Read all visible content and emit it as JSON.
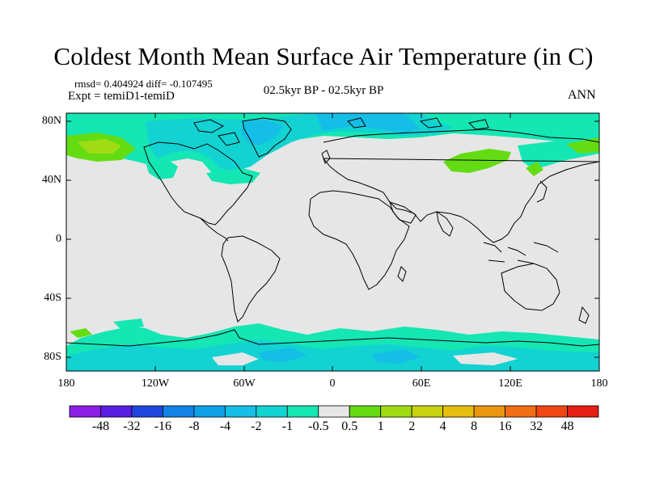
{
  "title": "Coldest Month Mean Surface Air Temperature (in C)",
  "stats": {
    "rmsd_line": "rmsd= 0.404924 diff= -0.107495",
    "expt_line": "Expt = temiD1-temiD"
  },
  "period": "02.5kyr BP - 02.5kyr BP",
  "season": "ANN",
  "axes": {
    "y_labels": [
      "80N",
      "40N",
      "0",
      "40S",
      "80S"
    ],
    "x_labels": [
      "180",
      "120W",
      "60W",
      "0",
      "60E",
      "120E",
      "180"
    ]
  },
  "colorbar": {
    "colors": [
      "#8c1ee6",
      "#5a1ee0",
      "#1e46dc",
      "#1482e6",
      "#0fa0e6",
      "#14bee6",
      "#12d2d2",
      "#14e6b4",
      "#e6e6e6",
      "#64dc14",
      "#a0dc14",
      "#c8d20f",
      "#e6be0f",
      "#eb960f",
      "#f06e14",
      "#f04614",
      "#e61e14"
    ],
    "labels": [
      "-48",
      "-32",
      "-16",
      "-8",
      "-4",
      "-2",
      "-1",
      "-0.5",
      "0.5",
      "1",
      "2",
      "4",
      "8",
      "16",
      "32",
      "48"
    ]
  }
}
